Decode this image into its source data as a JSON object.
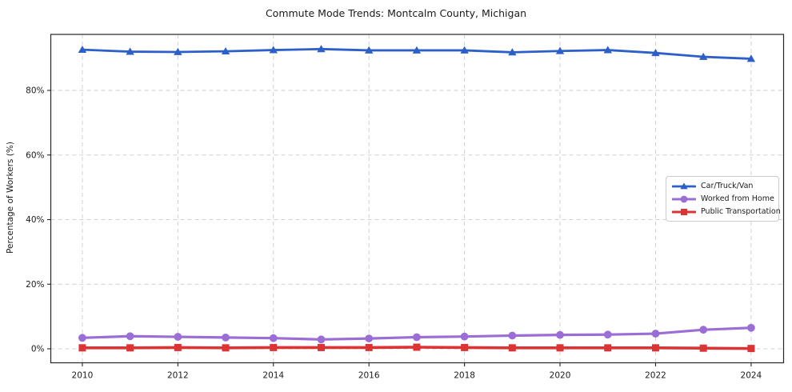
{
  "title": "Commute Mode Trends: Montcalm County, Michigan",
  "axes": {
    "ylabel": "Percentage of Workers (%)",
    "x_tick_labels": [
      "2010",
      "2012",
      "2014",
      "2016",
      "2018",
      "2020",
      "2022",
      "2024"
    ],
    "x_ticks": [
      2010,
      2012,
      2014,
      2016,
      2018,
      2020,
      2022,
      2024
    ],
    "y_ticks": [
      0,
      20,
      40,
      60,
      80
    ],
    "y_tick_suffix": "%"
  },
  "style_colors": {
    "grid": "#cbcbcb",
    "spine": "#262626",
    "tick_text": "#1a1a1a"
  },
  "chart_data": {
    "type": "line",
    "title": "Commute Mode Trends: Montcalm County, Michigan",
    "xlabel": "",
    "ylabel": "Percentage of Workers (%)",
    "x": [
      2010,
      2011,
      2012,
      2013,
      2014,
      2015,
      2016,
      2017,
      2018,
      2019,
      2020,
      2021,
      2022,
      2023,
      2024
    ],
    "series": [
      {
        "name": "Car/Truck/Van",
        "color": "#2d5fc8",
        "marker": "triangle",
        "line_width": 2.8,
        "values": [
          92.6,
          92.0,
          91.9,
          92.1,
          92.5,
          92.8,
          92.4,
          92.4,
          92.4,
          91.8,
          92.2,
          92.5,
          91.6,
          90.4,
          89.8
        ]
      },
      {
        "name": "Worked from Home",
        "color": "#9b6ed5",
        "marker": "circle",
        "line_width": 3.2,
        "values": [
          3.4,
          3.9,
          3.7,
          3.5,
          3.3,
          2.9,
          3.2,
          3.6,
          3.8,
          4.1,
          4.3,
          4.4,
          4.7,
          5.9,
          6.5
        ]
      },
      {
        "name": "Public Transportation",
        "color": "#dc3434",
        "marker": "square",
        "line_width": 3.6,
        "values": [
          0.3,
          0.3,
          0.4,
          0.3,
          0.4,
          0.4,
          0.4,
          0.5,
          0.4,
          0.3,
          0.3,
          0.3,
          0.3,
          0.2,
          0.1
        ]
      }
    ],
    "xlim": [
      2009.34,
      2024.68
    ],
    "ylim": [
      -4.33,
      97.34
    ],
    "grid": "dashed",
    "legend_position": "center-right"
  }
}
